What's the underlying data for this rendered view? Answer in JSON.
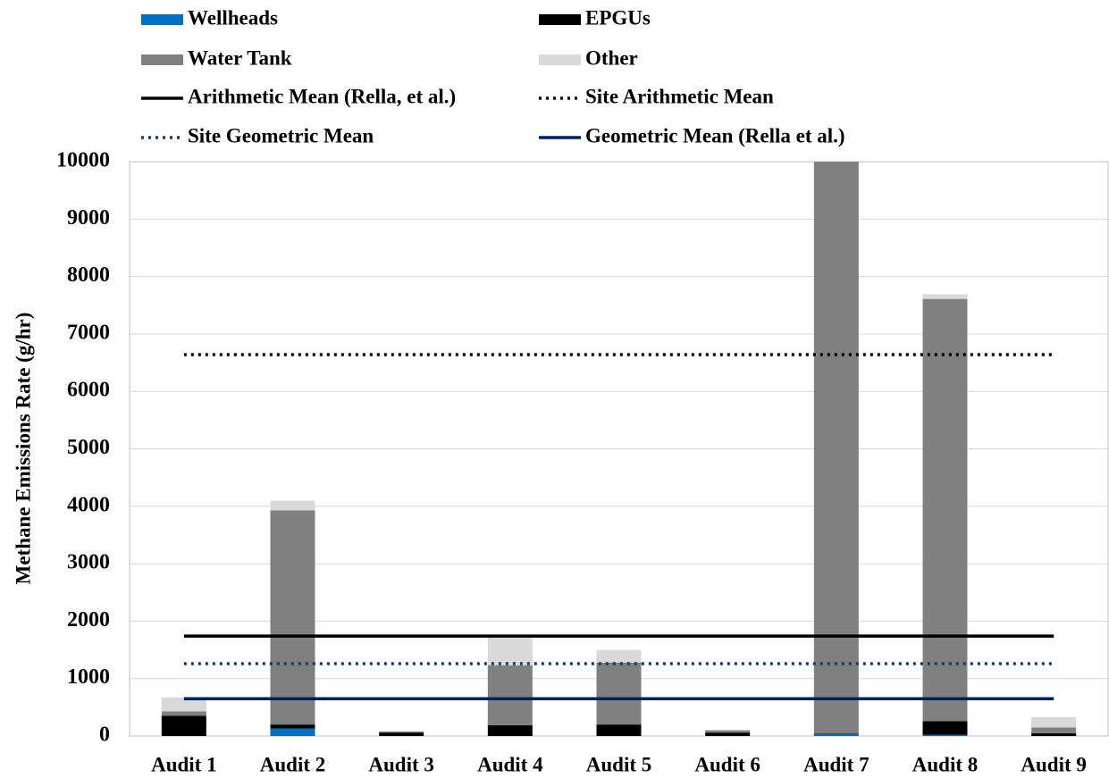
{
  "chart_data": {
    "type": "bar",
    "stacked": true,
    "y_axis_label": "Methane Emissions Rate (g/hr)",
    "categories": [
      "Audit 1",
      "Audit 2",
      "Audit 3",
      "Audit 4",
      "Audit 5",
      "Audit 6",
      "Audit 7",
      "Audit 8",
      "Audit 9"
    ],
    "series": [
      {
        "name": "Wellheads",
        "color": "#0070c0",
        "values": [
          0,
          130,
          0,
          0,
          0,
          0,
          30,
          20,
          0
        ]
      },
      {
        "name": "EPGUs",
        "color": "#000000",
        "values": [
          350,
          70,
          60,
          190,
          200,
          60,
          10,
          240,
          50
        ]
      },
      {
        "name": "Water Tank",
        "color": "#808080",
        "values": [
          80,
          3730,
          20,
          1040,
          1080,
          40,
          9960,
          7350,
          100
        ]
      },
      {
        "name": "Other",
        "color": "#d9d9d9",
        "values": [
          240,
          170,
          0,
          480,
          220,
          0,
          0,
          80,
          180
        ]
      }
    ],
    "reference_lines": [
      {
        "name": "Arithmetic Mean (Rella, et al.)",
        "color": "#000000",
        "style": "solid",
        "value": 1740
      },
      {
        "name": "Site Arithmetic Mean",
        "color": "#000000",
        "style": "dotted",
        "value": 6640
      },
      {
        "name": "Site Geometric Mean",
        "color": "#1f3864",
        "style": "dotted",
        "value": 1260
      },
      {
        "name": "Geometric Mean (Rella et al.)",
        "color": "#002060",
        "style": "solid",
        "value": 650
      }
    ],
    "ylim": [
      0,
      10000
    ],
    "yticks": [
      0,
      1000,
      2000,
      3000,
      4000,
      5000,
      6000,
      7000,
      8000,
      9000,
      10000
    ],
    "grid": true
  }
}
